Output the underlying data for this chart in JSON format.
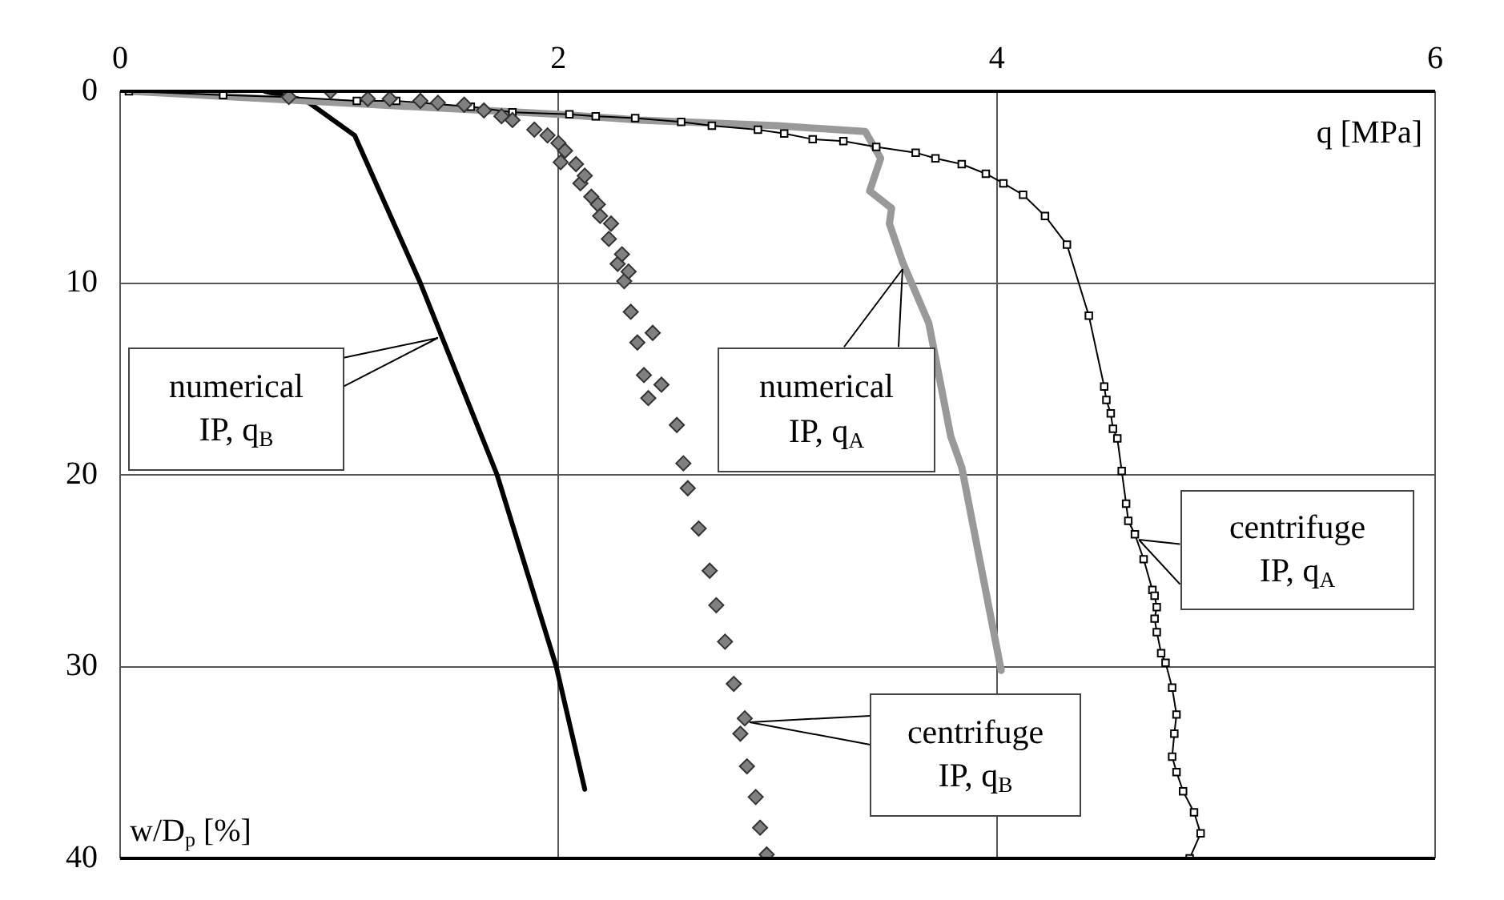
{
  "chart_data": {
    "type": "line",
    "xlabel": "q [MPa]",
    "ylabel": "w/D$_{p}$ [%]",
    "xlim": [
      0,
      6
    ],
    "xticks": [
      0,
      2,
      4,
      6
    ],
    "ylim": [
      40,
      0
    ],
    "yticks": [
      0,
      10,
      20,
      30,
      40
    ],
    "grid": true,
    "legend": false,
    "series": [
      {
        "type": "line",
        "color": "#000000",
        "marker": "none",
        "x": [
          0.66,
          0.85,
          1.07,
          1.37,
          1.72,
          1.99,
          2.12
        ],
        "values": [
          0,
          0.5,
          2.3,
          10,
          20,
          30,
          36.4
        ]
      },
      {
        "type": "line",
        "color": "#999999",
        "marker": "none",
        "x": [
          0.05,
          1.0,
          2.0,
          2.37,
          3.0,
          3.4,
          3.47,
          3.42,
          3.52,
          3.51,
          3.57,
          3.69,
          3.79,
          3.84,
          4.02
        ],
        "values": [
          0,
          0.6,
          1.2,
          1.5,
          1.8,
          2.1,
          3.5,
          5.2,
          6.1,
          6.9,
          8.9,
          12.1,
          18,
          19.6,
          30.2
        ]
      },
      {
        "type": "line",
        "color": "#000000",
        "marker": "square",
        "x": [
          0.04,
          0.47,
          0.77,
          1.08,
          1.26,
          1.6,
          1.79,
          2.05,
          2.17,
          2.35,
          2.56,
          2.7,
          2.91,
          3.03,
          3.16,
          3.3,
          3.45,
          3.63,
          3.72,
          3.84,
          3.95,
          4.03,
          4.12,
          4.22,
          4.32,
          4.42,
          4.49,
          4.5,
          4.52,
          4.53,
          4.55,
          4.57,
          4.59,
          4.6,
          4.63,
          4.67,
          4.71,
          4.72,
          4.73,
          4.72,
          4.73,
          4.75,
          4.77,
          4.8,
          4.82,
          4.81,
          4.8,
          4.82,
          4.85,
          4.9,
          4.93,
          4.88
        ],
        "values": [
          0,
          0.2,
          0.3,
          0.5,
          0.5,
          0.8,
          1.1,
          1.2,
          1.3,
          1.4,
          1.6,
          1.8,
          2.0,
          2.2,
          2.5,
          2.6,
          2.9,
          3.2,
          3.5,
          3.8,
          4.3,
          4.8,
          5.4,
          6.5,
          8.0,
          11.7,
          15.4,
          16.1,
          16.8,
          17.6,
          18.1,
          19.8,
          21.5,
          22.4,
          23.1,
          24.4,
          26.0,
          26.3,
          26.9,
          27.5,
          28.2,
          29.3,
          29.8,
          31.1,
          32.5,
          33.5,
          34.7,
          35.5,
          36.5,
          37.6,
          38.7,
          40
        ]
      },
      {
        "type": "scatter",
        "color": "#808080",
        "marker": "diamond",
        "x": [
          0.77,
          0.96,
          1.13,
          1.23,
          1.37,
          1.45,
          1.57,
          1.66,
          1.74,
          1.79,
          1.89,
          1.95,
          2.0,
          2.01,
          2.03,
          2.08,
          2.1,
          2.12,
          2.15,
          2.18,
          2.19,
          2.23,
          2.24,
          2.27,
          2.29,
          2.3,
          2.32,
          2.33,
          2.36,
          2.39,
          2.41,
          2.43,
          2.47,
          2.54,
          2.57,
          2.59,
          2.64,
          2.69,
          2.72,
          2.76,
          2.8,
          2.85,
          2.83,
          2.86,
          2.9,
          2.92,
          2.95
        ],
        "values": [
          0.3,
          0,
          0.4,
          0.4,
          0.5,
          0.6,
          0.7,
          1.0,
          1.3,
          1.5,
          2.0,
          2.3,
          2.7,
          3.7,
          3.1,
          3.8,
          4.8,
          4.4,
          5.5,
          5.9,
          6.5,
          7.7,
          6.9,
          9.0,
          8.5,
          9.9,
          9.4,
          11.5,
          13.1,
          14.8,
          16.0,
          12.6,
          15.3,
          17.4,
          19.4,
          20.7,
          22.8,
          25.0,
          26.8,
          28.7,
          30.9,
          32.7,
          33.5,
          35.2,
          36.8,
          38.4,
          39.8
        ]
      }
    ],
    "annotations": [
      {
        "text": "numerical\nIP, q$_{B}$",
        "x": 1.45,
        "y": 12.9
      },
      {
        "text": "numerical\nIP, q$_{A}$",
        "x": 3.57,
        "y": 9.3
      },
      {
        "text": "centrifuge\nIP, q$_{A}$",
        "x": 4.65,
        "y": 23.4
      },
      {
        "text": "centrifuge\nIP, q$_{B}$",
        "x": 2.87,
        "y": 32.9
      }
    ]
  }
}
